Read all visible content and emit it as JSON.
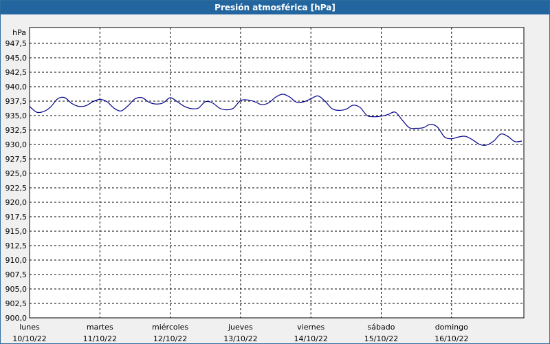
{
  "window": {
    "title": "Presión atmosférica [hPa]"
  },
  "chart_data": {
    "type": "line",
    "ylabel": "hPa",
    "ylim": [
      900,
      950
    ],
    "yticks": [
      900.0,
      902.5,
      905.0,
      907.5,
      910.0,
      912.5,
      915.0,
      917.5,
      920.0,
      922.5,
      925.0,
      927.5,
      930.0,
      932.5,
      935.0,
      937.5,
      940.0,
      942.5,
      945.0,
      947.5
    ],
    "ytick_labels": [
      "900,0",
      "902,5",
      "905,0",
      "907,5",
      "910,0",
      "912,5",
      "915,0",
      "917,5",
      "920,0",
      "922,5",
      "925,0",
      "927,5",
      "930,0",
      "932,5",
      "935,0",
      "937,5",
      "940,0",
      "942,5",
      "945,0",
      "947,5"
    ],
    "x_days": [
      {
        "day": "lunes",
        "date": "10/10/22"
      },
      {
        "day": "martes",
        "date": "11/10/22"
      },
      {
        "day": "miércoles",
        "date": "12/10/22"
      },
      {
        "day": "jueves",
        "date": "13/10/22"
      },
      {
        "day": "viernes",
        "date": "14/10/22"
      },
      {
        "day": "sábado",
        "date": "15/10/22"
      },
      {
        "day": "domingo",
        "date": "16/10/22"
      }
    ],
    "grid": true,
    "line_color": "#00008b",
    "series": [
      {
        "x": [
          0,
          0.1,
          0.2,
          0.3,
          0.4,
          0.5,
          0.6,
          0.7,
          0.8,
          0.9,
          1.0,
          1.1,
          1.2,
          1.3,
          1.4,
          1.5,
          1.6,
          1.7,
          1.8,
          1.9,
          2.0,
          2.1,
          2.2,
          2.3,
          2.4,
          2.5,
          2.6,
          2.7,
          2.8,
          2.9,
          3.0,
          3.1,
          3.2,
          3.3,
          3.4,
          3.5,
          3.6,
          3.7,
          3.8,
          3.9,
          4.0,
          4.1,
          4.2,
          4.3,
          4.4,
          4.5,
          4.6,
          4.7,
          4.8,
          4.9,
          5.0,
          5.1,
          5.2,
          5.3,
          5.4,
          5.5,
          5.6,
          5.7,
          5.8,
          5.9,
          6.0,
          6.1,
          6.2,
          6.3,
          6.4,
          6.5,
          6.6,
          6.7,
          6.8,
          6.9,
          7.0
        ],
        "y": [
          936.6,
          935.6,
          935.7,
          936.5,
          937.9,
          938.1,
          937.1,
          936.6,
          936.7,
          937.4,
          937.8,
          937.4,
          936.3,
          935.8,
          936.7,
          937.9,
          938.1,
          937.3,
          937.0,
          937.2,
          938.1,
          937.4,
          936.6,
          936.2,
          936.3,
          937.4,
          937.2,
          936.3,
          936.0,
          936.3,
          937.6,
          937.7,
          937.4,
          936.9,
          937.2,
          938.2,
          938.7,
          938.2,
          937.3,
          937.4,
          937.9,
          938.4,
          937.5,
          936.2,
          935.9,
          936.1,
          936.8,
          936.4,
          935.0,
          934.8,
          934.9,
          935.2,
          935.6,
          934.2,
          932.9,
          932.8,
          932.9,
          933.5,
          933.0,
          931.3,
          931.0,
          931.3,
          931.4,
          930.8,
          930.0,
          929.9,
          930.6,
          931.8,
          931.4,
          930.5,
          930.6
        ]
      }
    ]
  }
}
